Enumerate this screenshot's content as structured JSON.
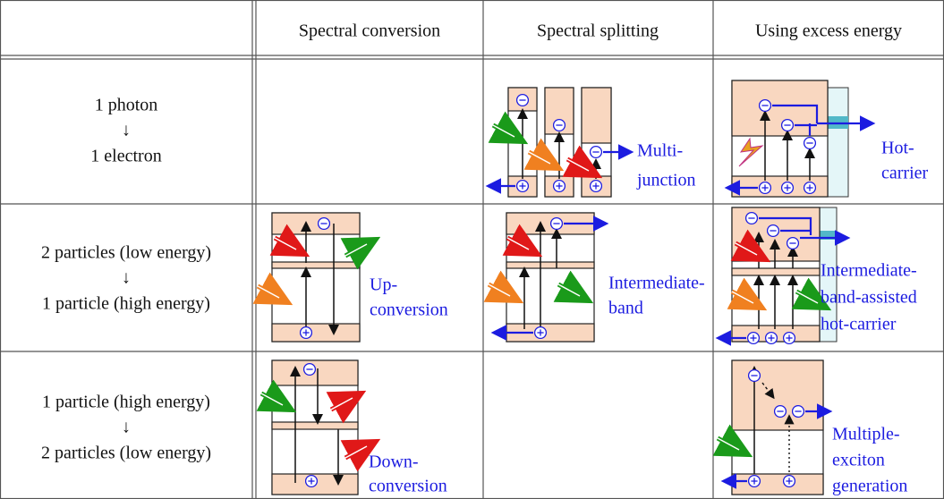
{
  "table": {
    "header": [
      "Spectral conversion",
      "Spectral splitting",
      "Using excess energy"
    ],
    "rows": [
      {
        "label": [
          "1 photon",
          "↓",
          "1 electron"
        ],
        "cells": {
          "spectral_splitting": [
            "Multi-",
            "junction"
          ],
          "using_excess_energy": [
            "Hot-",
            "carrier"
          ]
        }
      },
      {
        "label": [
          "2 particles (low energy)",
          "↓",
          "1 particle (high energy)"
        ],
        "cells": {
          "spectral_conversion": [
            "Up-",
            "conversion"
          ],
          "spectral_splitting": [
            "Intermediate-",
            "band"
          ],
          "using_excess_energy": [
            "Intermediate-",
            "band-assisted",
            "hot-carrier"
          ]
        }
      },
      {
        "label": [
          "1 particle (high energy)",
          "↓",
          "2 particles (low energy)"
        ],
        "cells": {
          "spectral_conversion": [
            "Down-",
            "conversion"
          ],
          "using_excess_energy": [
            "Multiple-",
            "exciton",
            "generation"
          ]
        }
      }
    ]
  }
}
